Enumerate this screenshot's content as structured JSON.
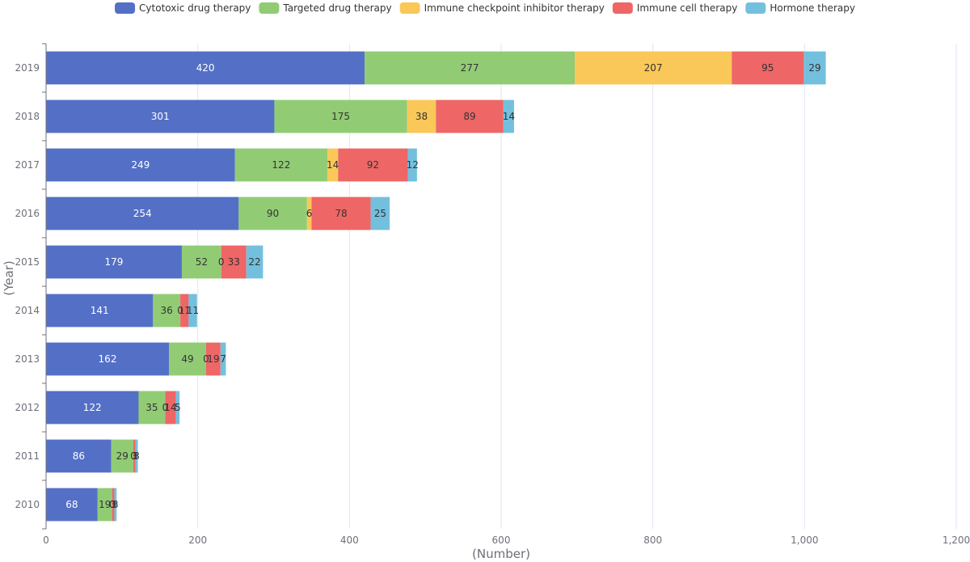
{
  "chart_data": {
    "type": "bar",
    "orientation": "horizontal",
    "stacked": true,
    "xlabel": "(Number)",
    "ylabel": "(Year)",
    "xlim": [
      0,
      1200
    ],
    "xticks": [
      "0",
      "200",
      "400",
      "600",
      "800",
      "1,000",
      "1,200"
    ],
    "xtick_values": [
      0,
      200,
      400,
      600,
      800,
      1000,
      1200
    ],
    "grid": "vertical",
    "legend_position": "top-center",
    "categories": [
      "2019",
      "2018",
      "2017",
      "2016",
      "2015",
      "2014",
      "2013",
      "2012",
      "2011",
      "2010"
    ],
    "series": [
      {
        "name": "Cytotoxic drug therapy",
        "color": "#5470c6",
        "label_color": "#ffffff",
        "values": [
          420,
          301,
          249,
          254,
          179,
          141,
          162,
          122,
          86,
          68
        ]
      },
      {
        "name": "Targeted drug therapy",
        "color": "#91cc75",
        "label_color": "#333333",
        "values": [
          277,
          175,
          122,
          90,
          52,
          36,
          49,
          35,
          29,
          19
        ]
      },
      {
        "name": "Immune checkpoint inhibitor therapy",
        "color": "#fac858",
        "label_color": "#333333",
        "values": [
          207,
          38,
          14,
          6,
          0,
          0,
          0,
          0,
          0,
          0
        ]
      },
      {
        "name": "Immune cell therapy",
        "color": "#ee6666",
        "label_color": "#333333",
        "values": [
          95,
          89,
          92,
          78,
          33,
          11,
          19,
          14,
          3,
          3
        ]
      },
      {
        "name": "Hormone therapy",
        "color": "#73c0de",
        "label_color": "#333333",
        "values": [
          29,
          14,
          12,
          25,
          22,
          11,
          7,
          5,
          3,
          3
        ]
      }
    ]
  }
}
